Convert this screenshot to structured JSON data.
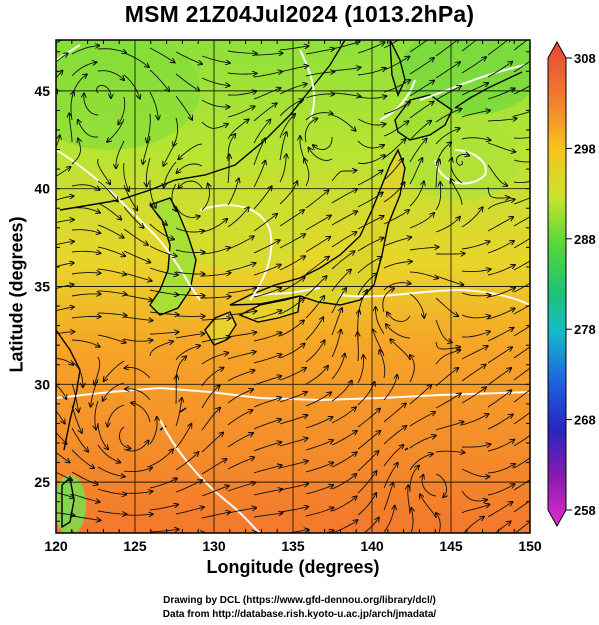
{
  "title": "MSM 21Z04Jul2024 (1013.2hPa)",
  "xlabel": "Longitude (degrees)",
  "ylabel": "Latitude  (degrees)",
  "credit_line1": "Drawing by DCL (https://www.gfd-dennou.org/library/dcl/)",
  "credit_line2": "Data from http://database.rish.kyoto-u.ac.jp/arch/jmadata/",
  "map": {
    "lon_range": [
      120,
      150
    ],
    "lat_range": [
      22.4,
      47.6
    ],
    "lon_ticks": [
      "120",
      "125",
      "130",
      "135",
      "140",
      "145",
      "150"
    ],
    "lat_ticks": [
      "25",
      "30",
      "35",
      "40",
      "45"
    ],
    "field": "temperature (K) with streamlines",
    "contour_line_color": "#ffffff",
    "coastline_color": "#000000"
  },
  "colorbar": {
    "labels": [
      "308",
      "298",
      "288",
      "278",
      "268",
      "258"
    ],
    "min": 258,
    "max": 308,
    "colors_top_to_bottom": [
      "#e8443a",
      "#f07f2c",
      "#f7c21e",
      "#c8e42a",
      "#56d63a",
      "#19c477",
      "#16b9c8",
      "#1e63e0",
      "#2626c0",
      "#8a1bb0",
      "#e02ec9"
    ]
  }
}
